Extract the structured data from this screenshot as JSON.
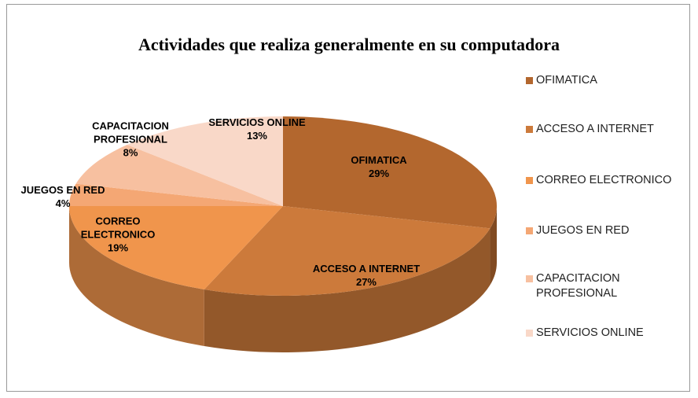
{
  "chart_data": {
    "type": "pie",
    "title": "Actividades que realiza generalmente en su computadora",
    "categories": [
      "OFIMATICA",
      "ACCESO A INTERNET",
      "CORREO ELECTRONICO",
      "JUEGOS EN RED",
      "CAPACITACION PROFESIONAL",
      "SERVICIOS ONLINE"
    ],
    "values": [
      29,
      27,
      19,
      4,
      8,
      13
    ],
    "value_labels": [
      "29%",
      "27%",
      "19%",
      "4%",
      "8%",
      "13%"
    ],
    "colors": [
      "#b3672e",
      "#cc7a3b",
      "#f0954c",
      "#f4a774",
      "#f7c0a0",
      "#f9d8c8"
    ],
    "legend": "right"
  }
}
